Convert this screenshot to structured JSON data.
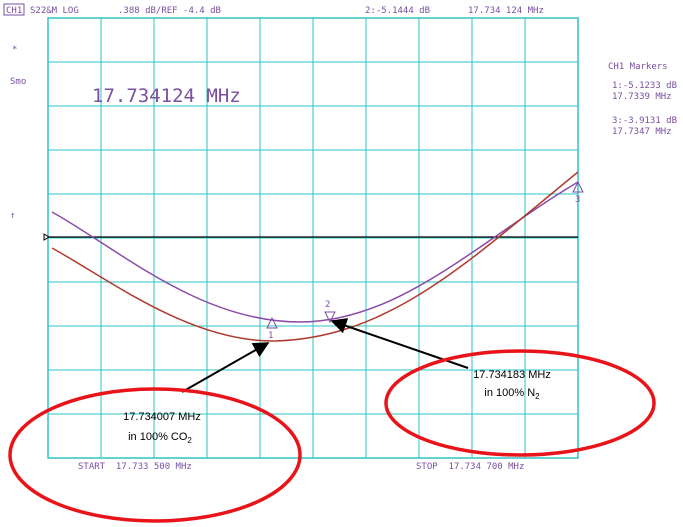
{
  "header": {
    "channel": "CH1",
    "format": "S22&M LOG",
    "scale": ".388 dB/REF -4.4 dB",
    "marker_value": "2:-5.1444 dB",
    "marker_freq": "17.734 124 MHz"
  },
  "left": {
    "star": "*",
    "smo": "Smo",
    "arrow": "↑"
  },
  "big_readout": "17.734124 MHz",
  "markers_panel": {
    "title": "CH1 Markers",
    "m1_value": "1:-5.1233 dB",
    "m1_freq": "17.7339 MHz",
    "m3_value": "3:-3.9131 dB",
    "m3_freq": "17.7347 MHz"
  },
  "marker_labels": [
    "1",
    "2",
    "3"
  ],
  "footer": {
    "start": "START  17.733 500 MHz",
    "stop": "STOP  17.734 700 MHz"
  },
  "annotations": [
    {
      "line1": "17.734007 MHz",
      "line2": "in 100% CO",
      "sub": "2"
    },
    {
      "line1": "17.734183 MHz",
      "line2": "in 100% N",
      "sub": "2"
    }
  ]
}
